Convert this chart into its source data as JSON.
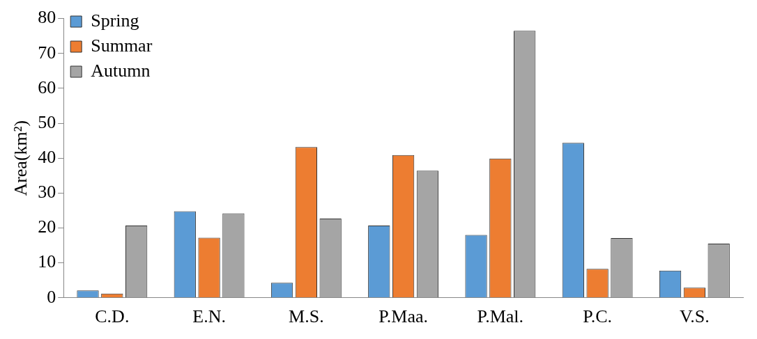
{
  "chart_data": {
    "type": "bar",
    "ylabel": "Area(km²)",
    "categories": [
      "C.D.",
      "E.N.",
      "M.S.",
      "P.Maa.",
      "P.Mal.",
      "P.C.",
      "V.S."
    ],
    "series": [
      {
        "name": "Spring",
        "color": "#5b9bd5",
        "values": [
          2.1,
          24.8,
          4.3,
          20.7,
          18.0,
          44.4,
          7.8
        ]
      },
      {
        "name": "Summar",
        "color": "#ed7d31",
        "values": [
          1.2,
          17.2,
          43.2,
          40.9,
          39.9,
          8.3,
          2.9
        ]
      },
      {
        "name": "Autumn",
        "color": "#a5a5a5",
        "values": [
          20.7,
          24.2,
          22.7,
          36.4,
          76.5,
          17.1,
          15.5
        ]
      }
    ],
    "ylim": [
      0,
      80
    ],
    "yticks": [
      0,
      10,
      20,
      30,
      40,
      50,
      60,
      70,
      80
    ],
    "grid": false,
    "legend": "top left"
  }
}
